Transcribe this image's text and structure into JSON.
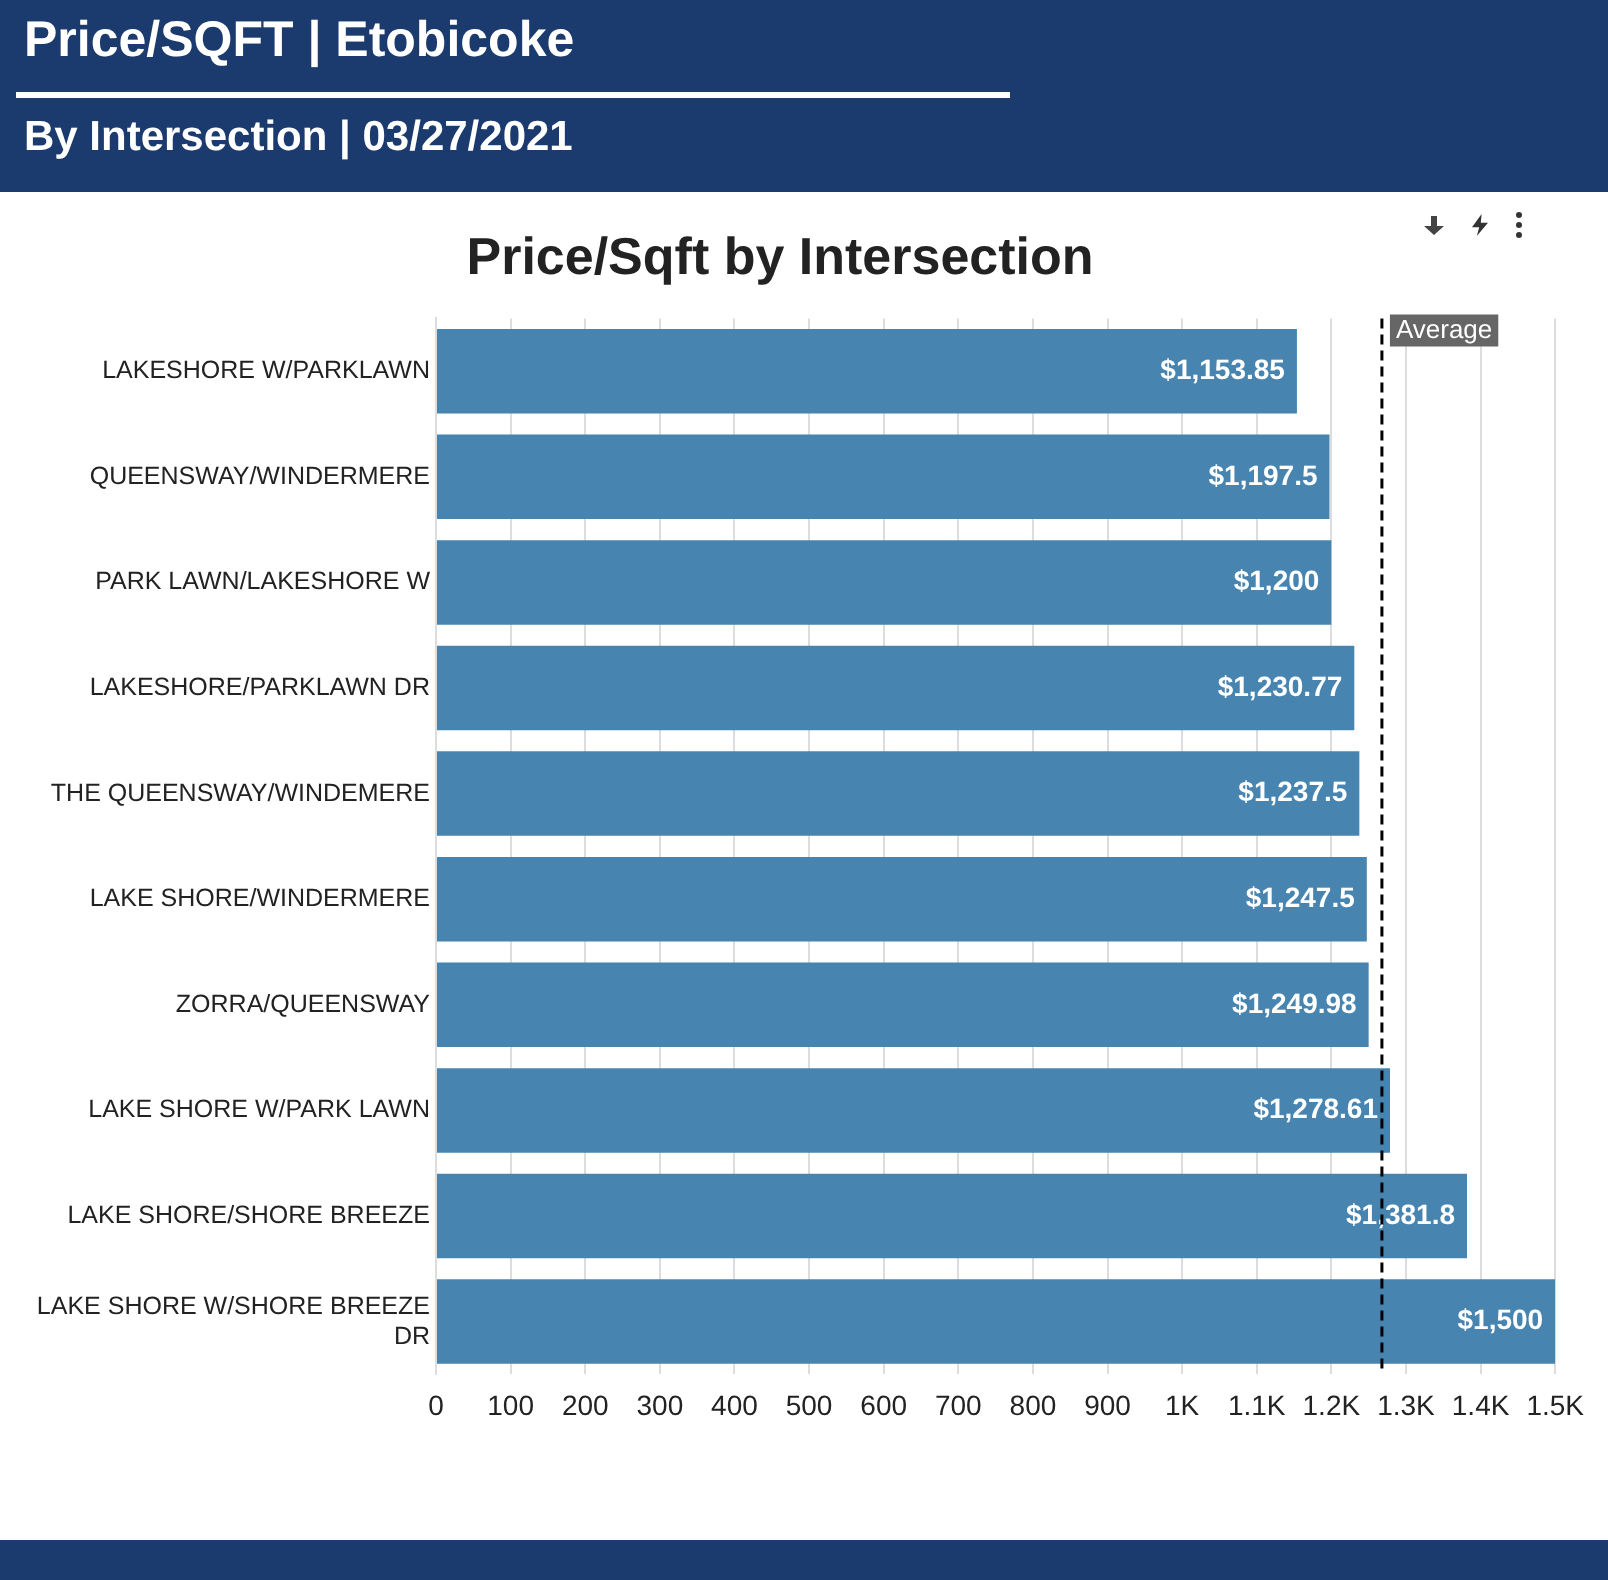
{
  "chart_data": {
    "type": "bar",
    "title": "Price/SQFT | Etobicoke",
    "subtitle": "By Intersection | 03/27/2021",
    "annotations": [
      "Price/Sqft by Intersection"
    ],
    "orientation": "horizontal",
    "categories": [
      "LAKESHORE W/PARKLAWN",
      "QUEENSWAY/WINDERMERE",
      "PARK LAWN/LAKESHORE W",
      "LAKESHORE/PARKLAWN DR",
      "THE QUEENSWAY/WINDEMERE",
      "LAKE SHORE/WINDERMERE",
      "ZORRA/QUEENSWAY",
      "LAKE SHORE W/PARK LAWN",
      "LAKE SHORE/SHORE BREEZE",
      "LAKE SHORE W/SHORE BREEZE DR"
    ],
    "values": [
      1153.85,
      1197.5,
      1200,
      1230.77,
      1237.5,
      1247.5,
      1249.98,
      1278.61,
      1381.8,
      1500
    ],
    "value_labels": [
      "$1,153.85",
      "$1,197.5",
      "$1,200",
      "$1,230.77",
      "$1,237.5",
      "$1,247.5",
      "$1,249.98",
      "$1,278.61",
      "$1,381.8",
      "$1,500"
    ],
    "color": "#4785b0",
    "xlim": [
      0,
      1500
    ],
    "xticks": [
      0,
      100,
      200,
      300,
      400,
      500,
      600,
      700,
      800,
      900,
      {
        "value": 1000,
        "label": "1K"
      },
      {
        "value": 1100,
        "label": "1.1K"
      },
      {
        "value": 1200,
        "label": "1.2K"
      },
      {
        "value": 1300,
        "label": "1.3K"
      },
      {
        "value": 1400,
        "label": "1.4K"
      },
      {
        "value": 1500,
        "label": "1.5K"
      }
    ],
    "grid": "x",
    "ref_lines": [
      {
        "axis": "x",
        "value": 1267.75,
        "label": "Average",
        "color": "#000000",
        "line_style": "dashed"
      }
    ]
  }
}
